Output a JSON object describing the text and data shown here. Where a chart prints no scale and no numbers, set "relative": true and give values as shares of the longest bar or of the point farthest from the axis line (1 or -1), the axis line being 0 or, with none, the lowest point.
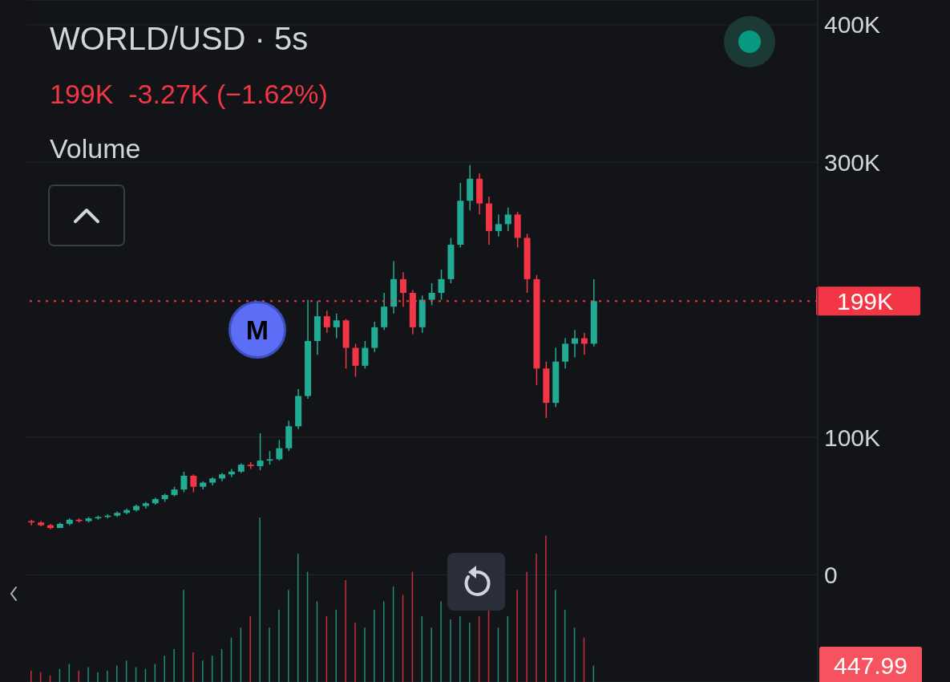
{
  "chart_data": [
    {
      "type": "candlestick",
      "title": "WORLD/USD · 5s",
      "subtitle": "199K  -3.27K (−1.62%)",
      "annotations": [
        "Volume",
        "M"
      ],
      "categories": [
        null,
        null,
        null,
        null,
        null,
        null,
        null,
        null,
        null,
        null,
        null,
        null,
        null,
        null,
        null,
        null,
        null,
        null,
        null,
        null,
        null,
        null,
        null,
        null,
        null,
        null,
        null,
        null,
        null,
        null,
        null,
        null,
        null,
        null,
        null,
        null,
        null,
        null,
        null,
        null,
        null,
        null,
        null,
        null,
        null,
        null,
        null,
        null,
        null,
        null,
        null,
        null,
        null,
        null,
        null,
        null,
        null,
        null,
        null,
        null,
        null,
        null,
        null,
        null,
        null,
        null,
        null,
        null,
        null,
        null,
        null,
        null,
        null,
        null,
        null,
        null,
        null,
        null,
        null,
        null,
        null,
        null,
        null
      ],
      "ohlc": [
        [
          39,
          40,
          36,
          38
        ],
        [
          38,
          39,
          35,
          36
        ],
        [
          36,
          37,
          33,
          34
        ],
        [
          34,
          38,
          34,
          37
        ],
        [
          37,
          41,
          36,
          40
        ],
        [
          40,
          41,
          38,
          39
        ],
        [
          39,
          42,
          38,
          41
        ],
        [
          41,
          43,
          40,
          42
        ],
        [
          42,
          44,
          41,
          43
        ],
        [
          43,
          46,
          42,
          45
        ],
        [
          45,
          48,
          44,
          47
        ],
        [
          47,
          51,
          46,
          50
        ],
        [
          50,
          53,
          48,
          52
        ],
        [
          52,
          56,
          51,
          55
        ],
        [
          55,
          59,
          53,
          58
        ],
        [
          58,
          64,
          57,
          62
        ],
        [
          62,
          75,
          60,
          72
        ],
        [
          72,
          73,
          60,
          64
        ],
        [
          64,
          68,
          62,
          67
        ],
        [
          67,
          71,
          65,
          70
        ],
        [
          70,
          74,
          68,
          73
        ],
        [
          73,
          77,
          71,
          75
        ],
        [
          75,
          81,
          74,
          80
        ],
        [
          80,
          82,
          77,
          79
        ],
        [
          79,
          103,
          76,
          83
        ],
        [
          83,
          90,
          80,
          84
        ],
        [
          84,
          98,
          83,
          92
        ],
        [
          92,
          112,
          90,
          108
        ],
        [
          108,
          135,
          106,
          130
        ],
        [
          130,
          200,
          128,
          170
        ],
        [
          170,
          199,
          160,
          188
        ],
        [
          188,
          192,
          176,
          180
        ],
        [
          180,
          190,
          172,
          185
        ],
        [
          185,
          186,
          150,
          165
        ],
        [
          165,
          168,
          144,
          152
        ],
        [
          152,
          170,
          150,
          165
        ],
        [
          165,
          184,
          162,
          180
        ],
        [
          180,
          205,
          178,
          195
        ],
        [
          195,
          228,
          190,
          215
        ],
        [
          215,
          220,
          195,
          205
        ],
        [
          205,
          207,
          175,
          180
        ],
        [
          180,
          203,
          176,
          200
        ],
        [
          200,
          212,
          196,
          205
        ],
        [
          205,
          222,
          200,
          215
        ],
        [
          215,
          245,
          212,
          240
        ],
        [
          240,
          285,
          238,
          272
        ],
        [
          272,
          298,
          265,
          288
        ],
        [
          288,
          292,
          262,
          270
        ],
        [
          270,
          275,
          240,
          250
        ],
        [
          250,
          262,
          246,
          255
        ],
        [
          255,
          267,
          250,
          262
        ],
        [
          262,
          264,
          238,
          245
        ],
        [
          245,
          248,
          205,
          215
        ],
        [
          215,
          218,
          138,
          150
        ],
        [
          150,
          155,
          114,
          125
        ],
        [
          125,
          165,
          122,
          155
        ],
        [
          155,
          172,
          150,
          168
        ],
        [
          168,
          178,
          158,
          172
        ],
        [
          172,
          176,
          160,
          168
        ],
        [
          168,
          215,
          166,
          199
        ],
        null,
        null,
        null,
        null,
        null,
        null,
        null,
        null,
        null,
        null,
        null,
        null,
        null,
        null,
        null,
        null,
        null,
        null,
        null,
        null,
        null,
        null,
        null
      ],
      "colors": [
        "#f23645",
        "#f23645",
        "#f23645",
        "#22ab94",
        "#22ab94",
        "#f23645",
        "#22ab94",
        "#22ab94",
        "#22ab94",
        "#22ab94",
        "#22ab94",
        "#22ab94",
        "#22ab94",
        "#22ab94",
        "#22ab94",
        "#22ab94",
        "#22ab94",
        "#f23645",
        "#22ab94",
        "#22ab94",
        "#22ab94",
        "#22ab94",
        "#22ab94",
        "#f23645",
        "#22ab94",
        "#22ab94",
        "#22ab94",
        "#22ab94",
        "#22ab94",
        "#22ab94",
        "#22ab94",
        "#f23645",
        "#22ab94",
        "#f23645",
        "#f23645",
        "#22ab94",
        "#22ab94",
        "#22ab94",
        "#22ab94",
        "#f23645",
        "#f23645",
        "#22ab94",
        "#22ab94",
        "#22ab94",
        "#22ab94",
        "#22ab94",
        "#22ab94",
        "#f23645",
        "#f23645",
        "#22ab94",
        "#22ab94",
        "#f23645",
        "#f23645",
        "#f23645",
        "#f23645",
        "#22ab94",
        "#22ab94",
        "#22ab94",
        "#f23645",
        "#22ab94",
        null,
        null,
        null,
        null,
        null,
        null,
        null,
        null,
        null,
        null,
        null,
        null,
        null,
        null,
        null,
        null,
        null,
        null,
        null,
        null,
        null,
        null,
        null
      ],
      "ylim": [
        -78,
        418
      ],
      "yticks": [
        {
          "value": 0,
          "label": "0"
        },
        {
          "value": 100,
          "label": "100K"
        },
        {
          "value": 300,
          "label": "300K"
        },
        {
          "value": 400,
          "label": "400K"
        }
      ],
      "ref_lines": [
        {
          "axis": "y",
          "value": 199,
          "label": "199K",
          "color": "#f23645",
          "line_style": "dotted"
        }
      ],
      "grid": "y"
    },
    {
      "type": "bar",
      "relative": true,
      "annotations": [
        "447.99"
      ],
      "categories": [
        null,
        null,
        null,
        null,
        null,
        null,
        null,
        null,
        null,
        null,
        null,
        null,
        null,
        null,
        null,
        null,
        null,
        null,
        null,
        null,
        null,
        null,
        null,
        null,
        null,
        null,
        null,
        null,
        null,
        null,
        null,
        null,
        null,
        null,
        null,
        null,
        null,
        null,
        null,
        null,
        null,
        null,
        null,
        null,
        null,
        null,
        null,
        null,
        null,
        null,
        null,
        null,
        null,
        null,
        null,
        null,
        null,
        null,
        null,
        null,
        null,
        null,
        null,
        null,
        null,
        null,
        null,
        null,
        null,
        null,
        null,
        null,
        null,
        null,
        null,
        null,
        null,
        null,
        null,
        null,
        null,
        null,
        null
      ],
      "values": [
        0.07,
        0.06,
        0.04,
        0.08,
        0.11,
        0.07,
        0.09,
        0.06,
        0.07,
        0.1,
        0.13,
        0.09,
        0.08,
        0.11,
        0.16,
        0.2,
        0.56,
        0.18,
        0.13,
        0.16,
        0.2,
        0.27,
        0.33,
        0.4,
        1,
        0.33,
        0.44,
        0.56,
        0.78,
        0.67,
        0.49,
        0.4,
        0.44,
        0.62,
        0.36,
        0.33,
        0.44,
        0.49,
        0.58,
        0.53,
        0.67,
        0.4,
        0.33,
        0.49,
        0.38,
        0.4,
        0.36,
        0.4,
        0.44,
        0.33,
        0.4,
        0.56,
        0.67,
        0.78,
        0.89,
        0.56,
        0.44,
        0.33,
        0.27,
        0.1,
        null,
        null,
        null,
        null,
        null,
        null,
        null,
        null,
        null,
        null,
        null,
        null,
        null,
        null,
        null,
        null,
        null,
        null,
        null,
        null,
        null,
        null,
        null
      ],
      "colors": [
        "#f23645",
        "#f23645",
        "#f23645",
        "#22ab94",
        "#22ab94",
        "#f23645",
        "#22ab94",
        "#22ab94",
        "#22ab94",
        "#22ab94",
        "#22ab94",
        "#22ab94",
        "#22ab94",
        "#22ab94",
        "#22ab94",
        "#22ab94",
        "#22ab94",
        "#f23645",
        "#22ab94",
        "#22ab94",
        "#22ab94",
        "#22ab94",
        "#22ab94",
        "#f23645",
        "#22ab94",
        "#22ab94",
        "#22ab94",
        "#22ab94",
        "#22ab94",
        "#22ab94",
        "#22ab94",
        "#f23645",
        "#22ab94",
        "#f23645",
        "#f23645",
        "#22ab94",
        "#22ab94",
        "#22ab94",
        "#22ab94",
        "#f23645",
        "#f23645",
        "#22ab94",
        "#22ab94",
        "#22ab94",
        "#22ab94",
        "#22ab94",
        "#22ab94",
        "#f23645",
        "#f23645",
        "#22ab94",
        "#22ab94",
        "#f23645",
        "#f23645",
        "#f23645",
        "#f23645",
        "#22ab94",
        "#22ab94",
        "#22ab94",
        "#f23645",
        "#22ab94",
        null,
        null,
        null,
        null,
        null,
        null,
        null,
        null,
        null,
        null,
        null,
        null,
        null,
        null,
        null,
        null,
        null,
        null,
        null,
        null,
        null,
        null,
        null
      ]
    }
  ]
}
